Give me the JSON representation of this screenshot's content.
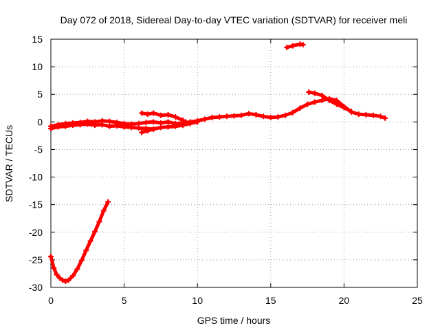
{
  "chart_data": {
    "type": "scatter",
    "title": "Day 072 of 2018, Sidereal Day-to-day VTEC variation (SDTVAR) for receiver meli",
    "xlabel": "GPS time / hours",
    "ylabel": "SDTVAR / TECUs",
    "xlim": [
      0,
      25
    ],
    "ylim": [
      -30,
      15
    ],
    "xticks": [
      0,
      5,
      10,
      15,
      20,
      25
    ],
    "yticks": [
      -30,
      -25,
      -20,
      -15,
      -10,
      -5,
      0,
      5,
      10,
      15
    ],
    "xtick_labels": [
      "0",
      "5",
      "10",
      "15",
      "20",
      "25"
    ],
    "ytick_labels": [
      "-30",
      "-25",
      "-20",
      "-15",
      "-10",
      "-5",
      "0",
      "5",
      "10",
      "15"
    ],
    "grid": true,
    "marker": "plus",
    "color": "#ff0000",
    "series": [
      {
        "name": "main-band-upper",
        "x": [
          0.0,
          0.5,
          1.0,
          1.5,
          2.0,
          2.5,
          3.0,
          3.5,
          4.0,
          4.5,
          5.0,
          5.5,
          6.0,
          6.5,
          7.0,
          7.5,
          8.0,
          8.5,
          9.0,
          9.5,
          10.0,
          10.5,
          11.0,
          11.5,
          12.0,
          12.5,
          13.0,
          13.5,
          14.0,
          14.5,
          15.0,
          15.5,
          16.0,
          16.5,
          17.0,
          17.5,
          18.0,
          18.5,
          19.0,
          19.5,
          20.0,
          20.5,
          21.0,
          21.5,
          22.0,
          22.5,
          22.8
        ],
        "y": [
          -0.8,
          -0.5,
          -0.3,
          -0.2,
          -0.1,
          0.1,
          0.0,
          0.2,
          0.1,
          -0.1,
          -0.3,
          -0.4,
          -0.3,
          -0.1,
          0.0,
          -0.2,
          0.0,
          -0.3,
          -0.2,
          0.0,
          0.2,
          0.5,
          0.8,
          0.9,
          1.0,
          1.1,
          1.2,
          1.5,
          1.3,
          1.0,
          0.8,
          0.9,
          1.2,
          1.7,
          2.5,
          3.2,
          3.6,
          3.9,
          4.2,
          3.9,
          2.8,
          1.8,
          1.4,
          1.3,
          1.2,
          1.0,
          0.7
        ]
      },
      {
        "name": "main-band-lower",
        "x": [
          0.0,
          0.5,
          1.0,
          1.5,
          2.0,
          2.5,
          3.0,
          3.5,
          4.0,
          4.5,
          5.0,
          5.5,
          6.0,
          6.5,
          7.0,
          7.5,
          8.0,
          8.5,
          9.0,
          9.5,
          10.0
        ],
        "y": [
          -1.2,
          -0.9,
          -0.8,
          -0.6,
          -0.5,
          -0.4,
          -0.6,
          -0.5,
          -0.8,
          -0.7,
          -0.9,
          -1.0,
          -1.1,
          -1.2,
          -1.3,
          -1.0,
          -0.9,
          -0.8,
          -0.6,
          -0.3,
          0.0
        ]
      },
      {
        "name": "secondary-track-6-9h",
        "x": [
          6.2,
          6.6,
          7.0,
          7.5,
          8.0,
          8.5,
          9.0,
          9.2
        ],
        "y": [
          1.6,
          1.4,
          1.6,
          1.2,
          1.3,
          0.9,
          0.3,
          0.0
        ]
      },
      {
        "name": "dip-track-6-7h",
        "x": [
          6.2,
          6.6,
          7.0
        ],
        "y": [
          -1.9,
          -1.6,
          -1.3
        ]
      },
      {
        "name": "hump-upper-17-20h",
        "x": [
          17.6,
          18.0,
          18.5,
          19.0,
          19.5,
          20.0,
          20.5
        ],
        "y": [
          5.4,
          5.2,
          4.8,
          3.9,
          3.2,
          2.6,
          1.9
        ]
      },
      {
        "name": "segment-near-14",
        "x": [
          16.1,
          16.5,
          17.0,
          17.2
        ],
        "y": [
          13.5,
          13.8,
          14.1,
          14.0
        ]
      },
      {
        "name": "segment-early-low",
        "x": [
          0.0,
          0.2,
          0.4,
          0.6,
          0.8,
          1.0,
          1.2,
          1.5,
          1.8,
          2.1,
          2.4,
          2.7,
          3.0,
          3.3,
          3.6,
          3.9
        ],
        "y": [
          -24.4,
          -26.5,
          -27.7,
          -28.3,
          -28.7,
          -28.9,
          -28.7,
          -27.9,
          -26.7,
          -25.1,
          -23.3,
          -21.6,
          -19.9,
          -18.1,
          -16.1,
          -14.5
        ]
      }
    ]
  }
}
